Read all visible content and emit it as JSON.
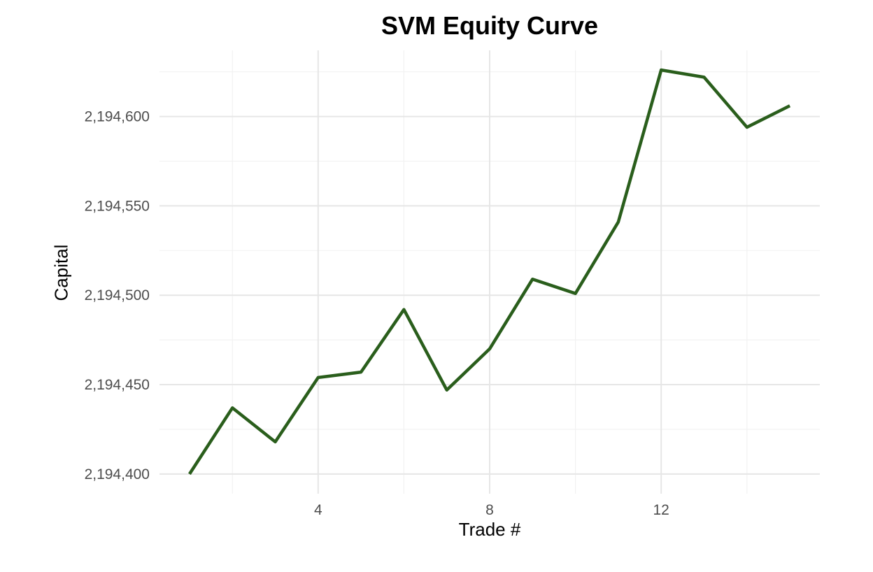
{
  "chart_data": {
    "type": "line",
    "title": "SVM Equity Curve",
    "xlabel": "Trade #",
    "ylabel": "Capital",
    "x": [
      1,
      2,
      3,
      4,
      5,
      6,
      7,
      8,
      9,
      10,
      11,
      12,
      13,
      14,
      15
    ],
    "series": [
      {
        "values": [
          2194400,
          2194437,
          2194418,
          2194454,
          2194457,
          2194492,
          2194447,
          2194470,
          2194509,
          2194501,
          2194541,
          2194626,
          2194622,
          2194594,
          2194606
        ]
      }
    ],
    "xlim": [
      0.3,
      15.7
    ],
    "ylim": [
      2194389,
      2194637
    ],
    "x_ticks": [
      4,
      8,
      12
    ],
    "x_tick_labels": [
      "4",
      "8",
      "12"
    ],
    "y_ticks": [
      2194400,
      2194450,
      2194500,
      2194550,
      2194600
    ],
    "y_tick_labels": [
      "2,194,400",
      "2,194,450",
      "2,194,500",
      "2,194,550",
      "2,194,600"
    ],
    "line_color": "#2a5e1c",
    "grid": true,
    "grid_color": "#e6e6e6",
    "legend": "none"
  }
}
